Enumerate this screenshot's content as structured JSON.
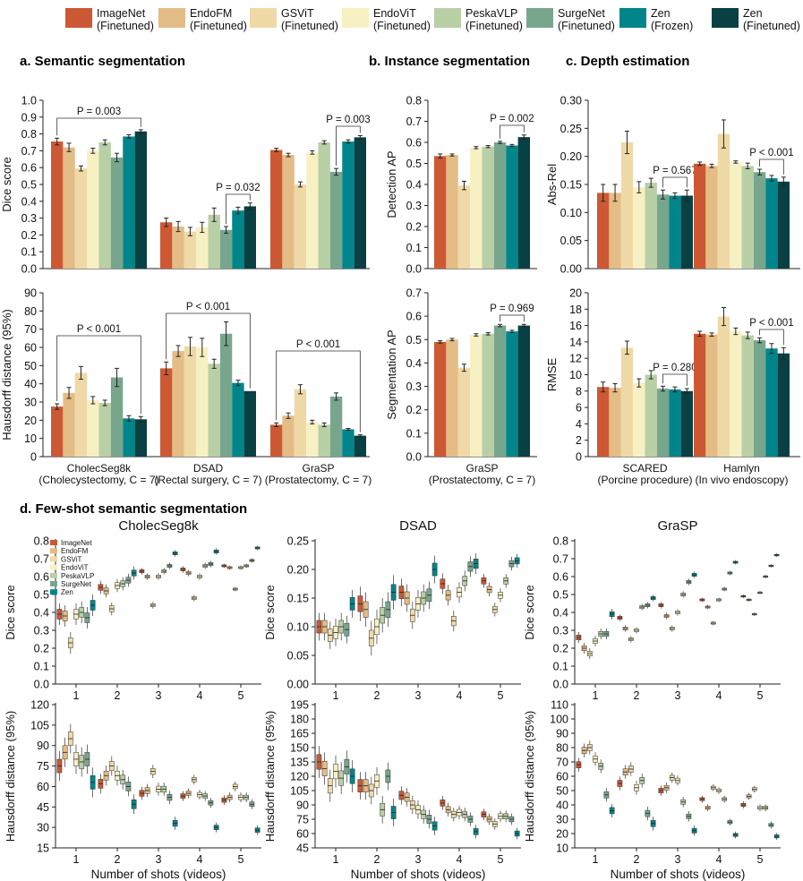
{
  "colors": [
    "#cc5933",
    "#e4bc85",
    "#efd9a6",
    "#f7f0c2",
    "#b9cfa6",
    "#78a68d",
    "#00868a",
    "#084043"
  ],
  "legend": [
    {
      "name": "ImageNet",
      "sub": "(Finetuned)"
    },
    {
      "name": "EndoFM",
      "sub": "(Finetuned)"
    },
    {
      "name": "GSViT",
      "sub": "(Finetuned)"
    },
    {
      "name": "EndoViT",
      "sub": "(Finetuned)"
    },
    {
      "name": "PeskaVLP",
      "sub": "(Finetuned)"
    },
    {
      "name": "SurgeNet",
      "sub": "(Finetuned)"
    },
    {
      "name": "Zen",
      "sub": "(Frozen)"
    },
    {
      "name": "Zen",
      "sub": "(Finetuned)"
    }
  ],
  "sections": {
    "a": "a.  Semantic segmentation",
    "b": "b.  Instance segmentation",
    "c": "c.  Depth estimation",
    "d": "d.  Few-shot semantic segmentation"
  },
  "fewshot_legend": [
    "ImageNet",
    "EndoFM",
    "GSViT",
    "EndoViT",
    "PeskaVLP",
    "SurgeNet",
    "Zen"
  ],
  "chart_data": [
    {
      "id": "a_dice",
      "type": "bar",
      "ylabel": "Dice score",
      "ylim": [
        0,
        1
      ],
      "yticks": [
        "0.0",
        "0.1",
        "0.2",
        "0.3",
        "0.4",
        "0.5",
        "0.6",
        "0.7",
        "0.8",
        "0.9",
        "1.0"
      ],
      "categories": [
        "CholecSeg8k",
        "DSAD",
        "GraSP"
      ],
      "series_values": [
        [
          0.755,
          0.72,
          0.595,
          0.7,
          0.75,
          0.66,
          0.785,
          0.815
        ],
        [
          0.275,
          0.25,
          0.22,
          0.245,
          0.32,
          0.23,
          0.345,
          0.37
        ],
        [
          0.705,
          0.675,
          0.5,
          0.69,
          0.75,
          0.575,
          0.755,
          0.78
        ]
      ],
      "errors": [
        [
          0.02,
          0.025,
          0.015,
          0.015,
          0.015,
          0.025,
          0.01,
          0.01
        ],
        [
          0.025,
          0.03,
          0.025,
          0.03,
          0.04,
          0.02,
          0.02,
          0.02
        ],
        [
          0.01,
          0.01,
          0.015,
          0.01,
          0.01,
          0.02,
          0.01,
          0.01
        ]
      ],
      "annotations": [
        {
          "group": 0,
          "text": "P = 0.003"
        },
        {
          "group": 1,
          "text": "P = 0.032"
        },
        {
          "group": 2,
          "text": "P = 0.003"
        }
      ]
    },
    {
      "id": "a_hd",
      "type": "bar",
      "ylabel": "Hausdorff distance (95%)",
      "ylim": [
        0,
        90
      ],
      "yticks": [
        "0",
        "10",
        "20",
        "30",
        "40",
        "50",
        "60",
        "70",
        "80",
        "90"
      ],
      "categories": [
        "CholecSeg8k",
        "DSAD",
        "GraSP"
      ],
      "category_subs": [
        "(Cholecystectomy, C = 7)",
        "(Rectal surgery, C = 7)",
        "(Prostatectomy, C = 7)"
      ],
      "series_values": [
        [
          27.5,
          35,
          46,
          31,
          29.5,
          43.5,
          21,
          20.5
        ],
        [
          48.5,
          58,
          60.5,
          60,
          51,
          67.5,
          40.5,
          36
        ],
        [
          17.5,
          22.5,
          37,
          19,
          17.5,
          33,
          15,
          11.5
        ]
      ],
      "errors": [
        [
          1.5,
          3,
          3.5,
          2,
          1.5,
          5,
          1.5,
          1.5
        ],
        [
          3.5,
          3,
          5,
          5,
          2.5,
          6.5,
          1.5,
          0
        ],
        [
          1,
          1.5,
          2.5,
          1,
          1,
          2,
          0.5,
          0.5
        ]
      ],
      "annotations": [
        {
          "group": 0,
          "text": "P < 0.001"
        },
        {
          "group": 1,
          "text": "P < 0.001"
        },
        {
          "group": 2,
          "text": "P < 0.001"
        }
      ]
    },
    {
      "id": "b_det",
      "type": "bar",
      "ylabel": "Detection AP",
      "ylim": [
        0,
        0.8
      ],
      "yticks": [
        "0.0",
        "0.1",
        "0.2",
        "0.3",
        "0.4",
        "0.5",
        "0.6",
        "0.7",
        "0.8"
      ],
      "categories": [
        "GraSP"
      ],
      "series_values": [
        [
          0.535,
          0.54,
          0.395,
          0.575,
          0.58,
          0.6,
          0.585,
          0.625
        ]
      ],
      "errors": [
        [
          0.01,
          0.005,
          0.02,
          0.005,
          0.005,
          0.005,
          0.005,
          0.01
        ]
      ],
      "annotations": [
        {
          "group": 0,
          "text": "P = 0.002"
        }
      ]
    },
    {
      "id": "b_seg",
      "type": "bar",
      "ylabel": "Segmentation AP",
      "ylim": [
        0,
        0.7
      ],
      "yticks": [
        "0.0",
        "0.1",
        "0.2",
        "0.3",
        "0.4",
        "0.5",
        "0.6",
        "0.7"
      ],
      "categories": [
        "GraSP"
      ],
      "category_subs": [
        "(Prostatectomy, C = 7)"
      ],
      "series_values": [
        [
          0.49,
          0.5,
          0.38,
          0.52,
          0.525,
          0.56,
          0.535,
          0.56
        ]
      ],
      "errors": [
        [
          0.005,
          0.005,
          0.015,
          0.005,
          0.005,
          0.005,
          0.005,
          0.005
        ]
      ],
      "annotations": [
        {
          "group": 0,
          "text": "P = 0.969"
        }
      ]
    },
    {
      "id": "c_absrel",
      "type": "bar",
      "ylabel": "Abs-Rel",
      "ylim": [
        0,
        0.3
      ],
      "yticks": [
        "0.00",
        "0.05",
        "0.10",
        "0.15",
        "0.20",
        "0.25",
        "0.30"
      ],
      "categories": [
        "SCARED",
        "Hamlyn"
      ],
      "series_values": [
        [
          0.135,
          0.135,
          0.225,
          0.145,
          0.153,
          0.132,
          0.13,
          0.13
        ],
        [
          0.187,
          0.183,
          0.24,
          0.19,
          0.183,
          0.172,
          0.161,
          0.155
        ]
      ],
      "errors": [
        [
          0.015,
          0.015,
          0.02,
          0.01,
          0.008,
          0.008,
          0.005,
          0.01
        ],
        [
          0.003,
          0.003,
          0.025,
          0.002,
          0.005,
          0.005,
          0.005,
          0.008
        ]
      ],
      "annotations": [
        {
          "group": 0,
          "text": "P = 0.567"
        },
        {
          "group": 1,
          "text": "P < 0.001"
        }
      ]
    },
    {
      "id": "c_rmse",
      "type": "bar",
      "ylabel": "RMSE",
      "ylim": [
        0,
        20
      ],
      "yticks": [
        "0",
        "2",
        "4",
        "6",
        "8",
        "10",
        "12",
        "14",
        "16",
        "18",
        "20"
      ],
      "categories": [
        "SCARED",
        "Hamlyn"
      ],
      "category_subs": [
        "(Porcine procedure)",
        "(In vivo endoscopy)"
      ],
      "series_values": [
        [
          8.5,
          8.4,
          13.3,
          9.0,
          10.0,
          8.3,
          8.2,
          8.0
        ],
        [
          15.0,
          14.9,
          17.1,
          15.3,
          14.8,
          14.2,
          13.2,
          12.6
        ]
      ],
      "errors": [
        [
          0.6,
          0.5,
          0.8,
          0.5,
          0.5,
          0.3,
          0.3,
          0.3
        ],
        [
          0.3,
          0.2,
          1.1,
          0.4,
          0.4,
          0.3,
          0.6,
          0.7
        ]
      ],
      "annotations": [
        {
          "group": 0,
          "text": "P = 0.280"
        },
        {
          "group": 1,
          "text": "P < 0.001"
        }
      ]
    },
    {
      "id": "d_chol_dice",
      "type": "box",
      "title": "CholecSeg8k",
      "ylabel": "Dice score",
      "ylim": [
        0.0,
        0.8
      ],
      "yticks": [
        "0.0",
        "0.1",
        "0.2",
        "0.3",
        "0.4",
        "0.5",
        "0.6",
        "0.7",
        "0.8"
      ],
      "xticks": [
        "1",
        "2",
        "3",
        "4",
        "5"
      ],
      "medians": [
        [
          0.39,
          0.38,
          0.23,
          0.39,
          0.4,
          0.37,
          0.44
        ],
        [
          0.54,
          0.52,
          0.42,
          0.55,
          0.56,
          0.58,
          0.62
        ],
        [
          0.63,
          0.6,
          0.44,
          0.6,
          0.63,
          0.66,
          0.73
        ],
        [
          0.64,
          0.62,
          0.48,
          0.6,
          0.66,
          0.67,
          0.74
        ],
        [
          0.66,
          0.65,
          0.53,
          0.65,
          0.66,
          0.69,
          0.76
        ]
      ],
      "spreads": [
        0.05,
        0.03,
        0.015,
        0.015,
        0.01
      ]
    },
    {
      "id": "d_dsad_dice",
      "type": "box",
      "title": "DSAD",
      "ylabel": "Dice score",
      "ylim": [
        0.0,
        0.25
      ],
      "yticks": [
        "0.00",
        "0.05",
        "0.10",
        "0.15",
        "0.20",
        "0.25"
      ],
      "xticks": [
        "1",
        "2",
        "3",
        "4",
        "5"
      ],
      "medians": [
        [
          0.1,
          0.1,
          0.085,
          0.09,
          0.1,
          0.095,
          0.14
        ],
        [
          0.14,
          0.13,
          0.08,
          0.1,
          0.12,
          0.13,
          0.16
        ],
        [
          0.16,
          0.15,
          0.12,
          0.14,
          0.15,
          0.155,
          0.2
        ],
        [
          0.175,
          0.155,
          0.11,
          0.16,
          0.18,
          0.205,
          0.21
        ],
        [
          0.18,
          0.165,
          0.13,
          0.155,
          0.18,
          0.21,
          0.215
        ]
      ],
      "spreads": [
        0.02,
        0.025,
        0.02,
        0.015,
        0.01
      ]
    },
    {
      "id": "d_grasp_dice",
      "type": "box",
      "title": "GraSP",
      "ylabel": "Dice score",
      "ylim": [
        0.0,
        0.8
      ],
      "yticks": [
        "0.0",
        "0.1",
        "0.2",
        "0.3",
        "0.4",
        "0.5",
        "0.6",
        "0.7",
        "0.8"
      ],
      "xticks": [
        "1",
        "2",
        "3",
        "4",
        "5"
      ],
      "medians": [
        [
          0.26,
          0.2,
          0.17,
          0.24,
          0.28,
          0.28,
          0.39
        ],
        [
          0.37,
          0.31,
          0.25,
          0.3,
          0.43,
          0.44,
          0.48
        ],
        [
          0.44,
          0.38,
          0.31,
          0.4,
          0.5,
          0.57,
          0.61
        ],
        [
          0.47,
          0.43,
          0.34,
          0.47,
          0.53,
          0.62,
          0.68
        ],
        [
          0.49,
          0.47,
          0.39,
          0.51,
          0.6,
          0.66,
          0.72
        ]
      ],
      "spreads": [
        0.025,
        0.015,
        0.015,
        0.01,
        0.008
      ]
    },
    {
      "id": "d_chol_hd",
      "type": "box",
      "ylabel": "Hausdorff distance (95%)",
      "xlabel": "Number of shots (videos)",
      "ylim": [
        15,
        120
      ],
      "yticks": [
        "15",
        "30",
        "45",
        "60",
        "75",
        "90",
        "105",
        "120"
      ],
      "xticks": [
        "1",
        "2",
        "3",
        "4",
        "5"
      ],
      "medians": [
        [
          75,
          85,
          95,
          80,
          78,
          80,
          63
        ],
        [
          62,
          68,
          75,
          68,
          65,
          60,
          47
        ],
        [
          55,
          57,
          71,
          58,
          58,
          52,
          33
        ],
        [
          53,
          55,
          65,
          54,
          53,
          48,
          30
        ],
        [
          50,
          52,
          60,
          52,
          52,
          47,
          28
        ]
      ],
      "spreads": [
        9,
        6,
        4,
        3,
        3
      ]
    },
    {
      "id": "d_dsad_hd",
      "type": "box",
      "ylabel": "Hausdorff distance (95%)",
      "xlabel": "Number of shots (videos)",
      "ylim": [
        45,
        195
      ],
      "yticks": [
        "45",
        "60",
        "75",
        "90",
        "105",
        "120",
        "135",
        "150",
        "165",
        "180",
        "195"
      ],
      "xticks": [
        "1",
        "2",
        "3",
        "4",
        "5"
      ],
      "medians": [
        [
          135,
          128,
          110,
          125,
          118,
          130,
          120
        ],
        [
          110,
          110,
          105,
          115,
          85,
          120,
          82
        ],
        [
          100,
          98,
          90,
          85,
          80,
          75,
          68
        ],
        [
          92,
          85,
          80,
          82,
          80,
          75,
          62
        ],
        [
          80,
          75,
          70,
          78,
          78,
          75,
          60
        ]
      ],
      "spreads": [
        14,
        12,
        8,
        6,
        5
      ]
    },
    {
      "id": "d_grasp_hd",
      "type": "box",
      "ylabel": "Hausdorff distance (95%)",
      "xlabel": "Number of shots (videos)",
      "ylim": [
        10,
        110
      ],
      "yticks": [
        "10",
        "20",
        "30",
        "40",
        "50",
        "60",
        "70",
        "80",
        "90",
        "100",
        "110"
      ],
      "xticks": [
        "1",
        "2",
        "3",
        "4",
        "5"
      ],
      "medians": [
        [
          68,
          78,
          80,
          72,
          67,
          47,
          36
        ],
        [
          55,
          63,
          65,
          52,
          57,
          34,
          27
        ],
        [
          50,
          52,
          59,
          57,
          42,
          32,
          22
        ],
        [
          44,
          38,
          52,
          50,
          44,
          28,
          19
        ],
        [
          40,
          46,
          51,
          38,
          38,
          26,
          18
        ]
      ],
      "spreads": [
        4,
        4,
        3,
        2,
        2
      ]
    }
  ]
}
